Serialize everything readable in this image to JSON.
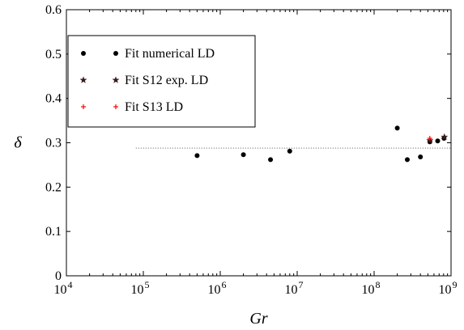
{
  "chart_data": {
    "type": "scatter",
    "title": "",
    "xlabel": "Gr",
    "ylabel": "δ",
    "xscale": "log",
    "xlim": [
      10000,
      1000000000
    ],
    "ylim": [
      0,
      0.6
    ],
    "x_ticks": [
      10000,
      100000,
      1000000,
      10000000,
      100000000,
      1000000000
    ],
    "x_tick_labels": [
      {
        "base": "10",
        "exp": "4"
      },
      {
        "base": "10",
        "exp": "5"
      },
      {
        "base": "10",
        "exp": "6"
      },
      {
        "base": "10",
        "exp": "7"
      },
      {
        "base": "10",
        "exp": "8"
      },
      {
        "base": "10",
        "exp": "9"
      }
    ],
    "y_ticks": [
      0,
      0.1,
      0.2,
      0.3,
      0.4,
      0.5,
      0.6
    ],
    "y_tick_labels": [
      "0",
      "0.1",
      "0.2",
      "0.3",
      "0.4",
      "0.5",
      "0.6"
    ],
    "grid": false,
    "legend_position": "top-left",
    "reference_line": {
      "y": 0.288,
      "x_from": 80000,
      "x_to": 1000000000,
      "style": "dotted"
    },
    "series": [
      {
        "name": "Fit numerical LD",
        "marker": "dot",
        "color": "#000000",
        "points": [
          {
            "x": 500000,
            "y": 0.271
          },
          {
            "x": 2000000,
            "y": 0.273
          },
          {
            "x": 4500000,
            "y": 0.262
          },
          {
            "x": 8000000,
            "y": 0.281
          },
          {
            "x": 200000000,
            "y": 0.333
          },
          {
            "x": 270000000,
            "y": 0.262
          },
          {
            "x": 400000000,
            "y": 0.268
          },
          {
            "x": 530000000,
            "y": 0.302
          },
          {
            "x": 670000000,
            "y": 0.304
          },
          {
            "x": 810000000,
            "y": 0.31
          }
        ]
      },
      {
        "name": "Fit S12 exp. LD",
        "marker": "star",
        "color": "#3a1c1c",
        "points": [
          {
            "x": 530000000,
            "y": 0.305
          },
          {
            "x": 820000000,
            "y": 0.313
          }
        ]
      },
      {
        "name": "Fit S13 LD",
        "marker": "plus",
        "color": "#ff0000",
        "points": [
          {
            "x": 530000000,
            "y": 0.31
          }
        ]
      }
    ]
  }
}
